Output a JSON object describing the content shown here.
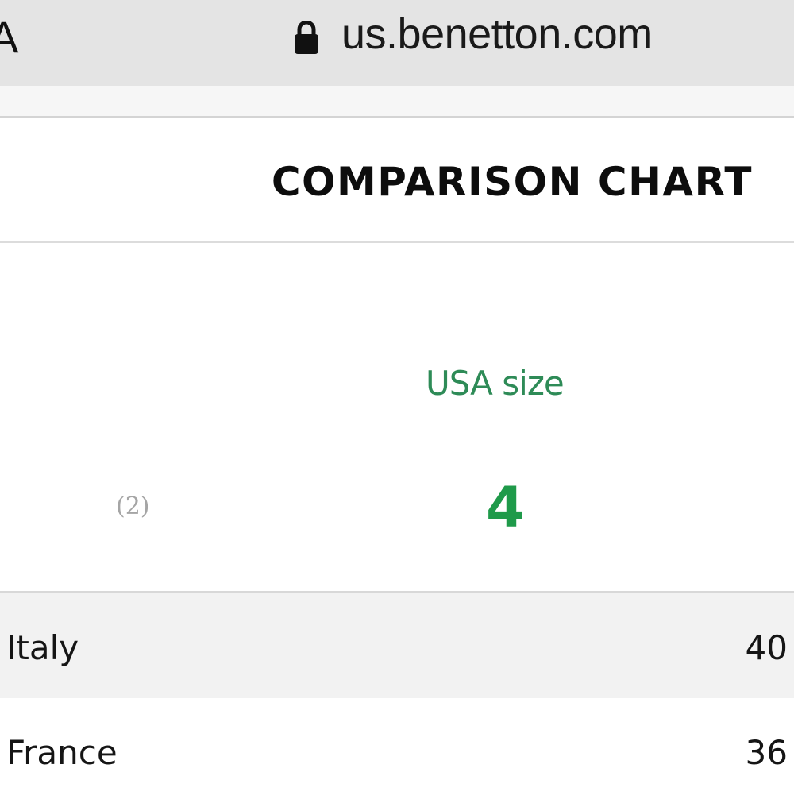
{
  "browser": {
    "cut_letter": "A",
    "url": "us.benetton.com",
    "lock_icon": "lock-icon"
  },
  "page": {
    "title": "COMPARISON CHART",
    "size_label": "USA size",
    "note": "(2)",
    "size_value": "4",
    "accent_color": "#1f9a4a",
    "rows": [
      {
        "country": "Italy",
        "value": "40"
      },
      {
        "country": "France",
        "value": "36"
      }
    ]
  }
}
